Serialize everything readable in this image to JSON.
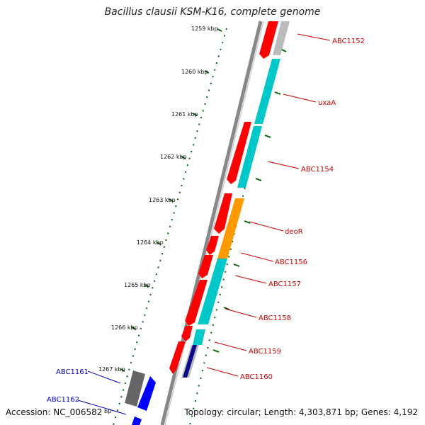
{
  "title": "Bacillus clausii KSM-K16, complete genome",
  "footer": {
    "accession": "Accession: NC_006582",
    "topology": "Topology: circular; Length: 4,303,871 bp; Genes: 4,192"
  },
  "ticks": [
    {
      "label": "1259 kbp"
    },
    {
      "label": "1260 kbp"
    },
    {
      "label": "1261 kbp"
    },
    {
      "label": "1262 kbp"
    },
    {
      "label": "1263 kbp"
    },
    {
      "label": "1264 kbp"
    },
    {
      "label": "1265 kbp"
    },
    {
      "label": "1266 kbp"
    },
    {
      "label": "1267 kbp"
    },
    {
      "label": "bp"
    }
  ],
  "genes": [
    {
      "name": "ABC1152"
    },
    {
      "name": "uxaA"
    },
    {
      "name": "ABC1154"
    },
    {
      "name": "deoR"
    },
    {
      "name": "ABC1156"
    },
    {
      "name": "ABC1157"
    },
    {
      "name": "ABC1158"
    },
    {
      "name": "ABC1159"
    },
    {
      "name": "ABC1160"
    },
    {
      "name": "ABC1161"
    },
    {
      "name": "ABC1162"
    }
  ],
  "colors": {
    "forward_cds": "#ff0000",
    "reverse_cds": "#00c8c8",
    "regulator": "#ff9900",
    "other": "#bbbbbb",
    "tick": "#006600",
    "backbone": "#888888",
    "label_red": "#cc0000",
    "label_blue": "#0000cc"
  }
}
